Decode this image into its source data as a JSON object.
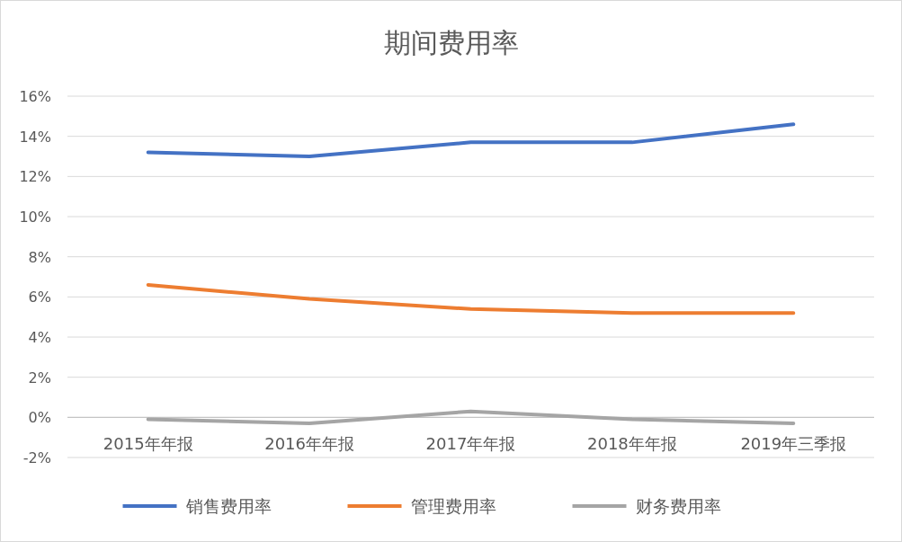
{
  "chart_data": {
    "type": "line",
    "title": "期间费用率",
    "categories": [
      "2015年年报",
      "2016年年报",
      "2017年年报",
      "2018年年报",
      "2019年三季报"
    ],
    "series": [
      {
        "name": "销售费用率",
        "color": "#4472c4",
        "values": [
          13.2,
          13.0,
          13.7,
          13.7,
          14.6
        ]
      },
      {
        "name": "管理费用率",
        "color": "#ed7d31",
        "values": [
          6.6,
          5.9,
          5.4,
          5.2,
          5.2
        ]
      },
      {
        "name": "财务费用率",
        "color": "#a5a5a5",
        "values": [
          -0.1,
          -0.3,
          0.3,
          -0.1,
          -0.3
        ]
      }
    ],
    "ylim": [
      -2,
      16
    ],
    "yticks": [
      {
        "value": -2,
        "label": "-2%"
      },
      {
        "value": 0,
        "label": "0%"
      },
      {
        "value": 2,
        "label": "2%"
      },
      {
        "value": 4,
        "label": "4%"
      },
      {
        "value": 6,
        "label": "6%"
      },
      {
        "value": 8,
        "label": "8%"
      },
      {
        "value": 10,
        "label": "10%"
      },
      {
        "value": 12,
        "label": "12%"
      },
      {
        "value": 14,
        "label": "14%"
      },
      {
        "value": 16,
        "label": "16%"
      }
    ],
    "grid": "y",
    "legend": "bottom"
  }
}
